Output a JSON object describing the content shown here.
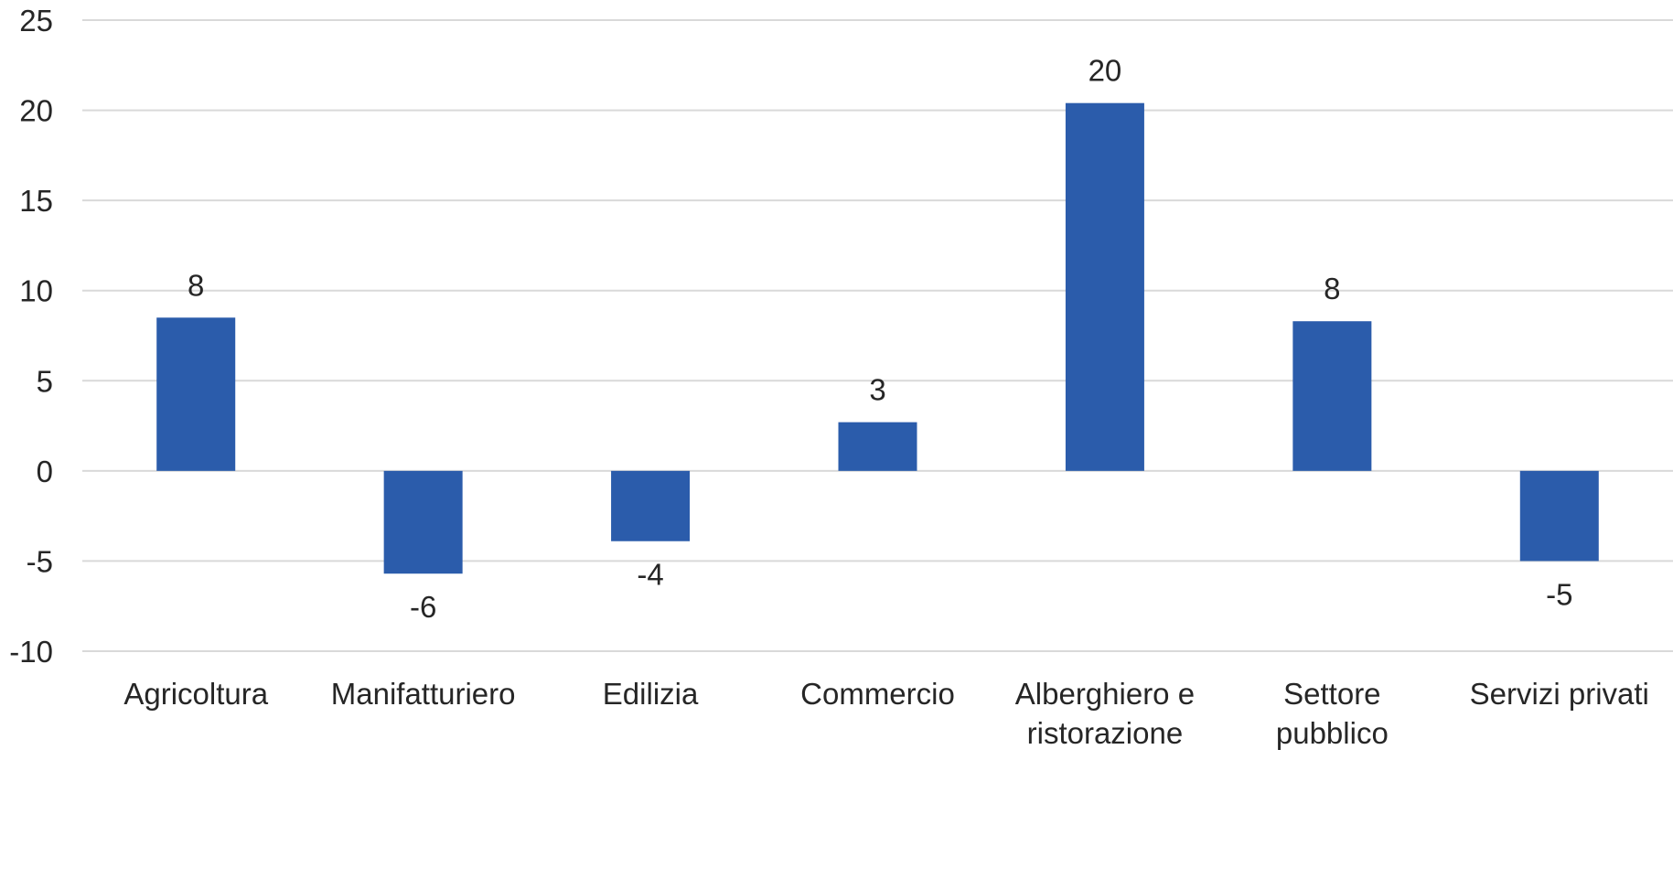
{
  "chart_data": {
    "type": "bar",
    "title": "",
    "xlabel": "",
    "ylabel": "",
    "categories": [
      [
        "Agricoltura"
      ],
      [
        "Manifatturiero"
      ],
      [
        "Edilizia"
      ],
      [
        "Commercio"
      ],
      [
        "Alberghiero e",
        "ristorazione"
      ],
      [
        "Settore",
        "pubblico"
      ],
      [
        "Servizi privati"
      ]
    ],
    "values": [
      8.5,
      -5.7,
      -3.9,
      2.7,
      20.4,
      8.3,
      -5.0
    ],
    "data_labels": [
      "8",
      "-6",
      "-4",
      "3",
      "20",
      "8",
      "-5"
    ],
    "ylim": [
      -10,
      25
    ],
    "yticks": [
      -10,
      -5,
      0,
      5,
      10,
      15,
      20,
      25
    ],
    "ytick_labels": [
      "-10",
      "-5",
      "0",
      "5",
      "10",
      "15",
      "20",
      "25"
    ],
    "grid": true,
    "legend": "none",
    "colors": {
      "bar": "#2b5cab",
      "grid": "#d9d9d9",
      "text": "#262626"
    }
  }
}
